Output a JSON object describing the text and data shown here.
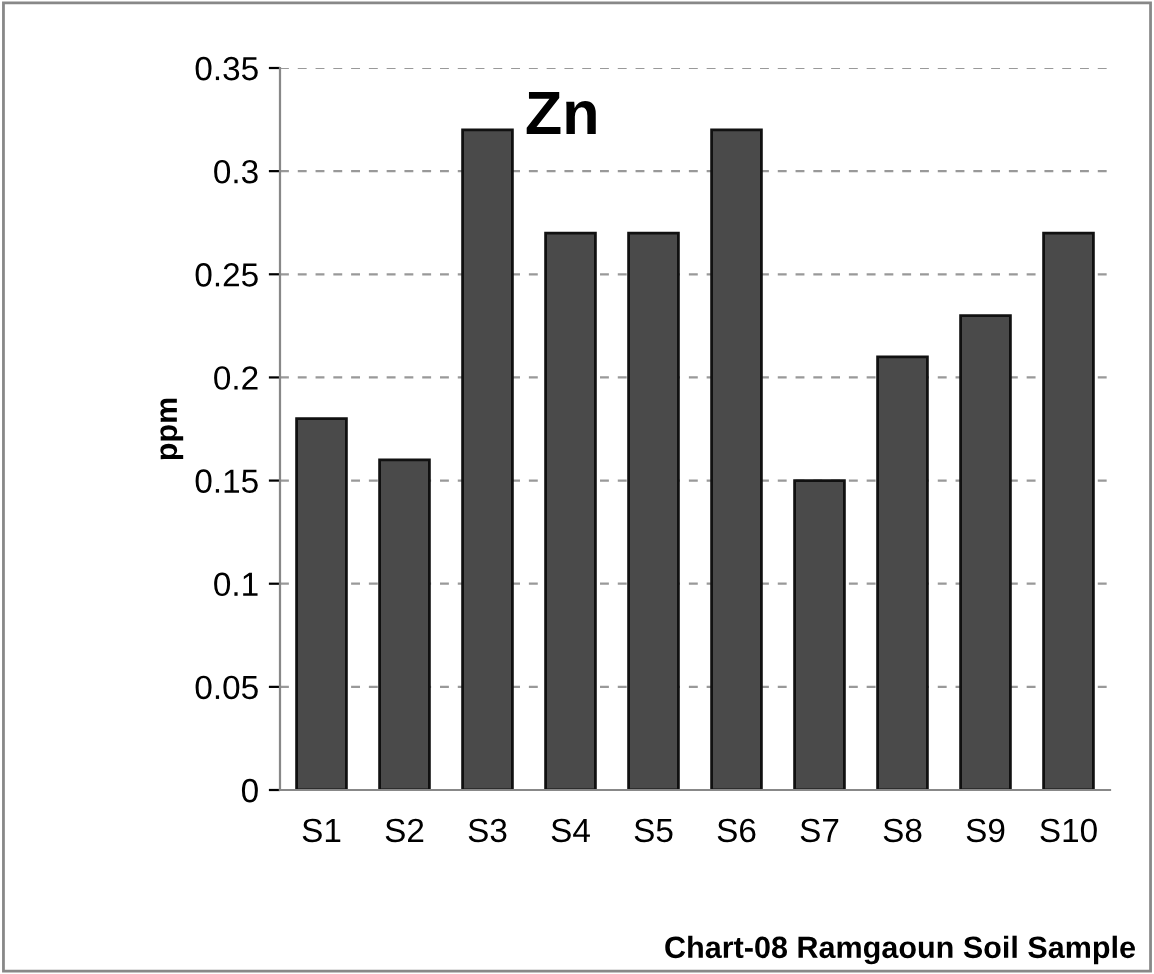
{
  "chart_data": {
    "type": "bar",
    "title": "Zn",
    "xlabel": "Chart-08 Ramgaoun Soil Sample",
    "ylabel": "ppm",
    "categories": [
      "S1",
      "S2",
      "S3",
      "S4",
      "S5",
      "S6",
      "S7",
      "S8",
      "S9",
      "S10"
    ],
    "values": [
      0.18,
      0.16,
      0.32,
      0.27,
      0.27,
      0.32,
      0.15,
      0.21,
      0.23,
      0.27
    ],
    "color": "#4a4a4a",
    "ylim": [
      0,
      0.35
    ],
    "yticks": [
      0,
      0.05,
      0.1,
      0.15,
      0.2,
      0.25,
      0.3,
      0.35
    ],
    "grid": "y"
  }
}
